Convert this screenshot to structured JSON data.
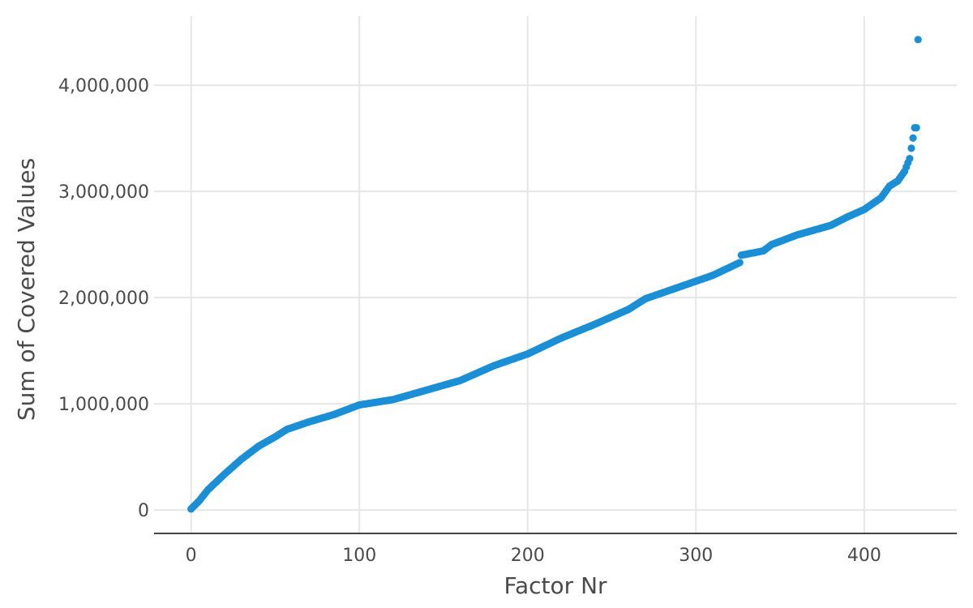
{
  "chart_data": {
    "type": "scatter",
    "xlabel": "Factor Nr",
    "ylabel": "Sum of Covered Values",
    "xlim": [
      -22,
      455
    ],
    "ylim": [
      -220000,
      4650000
    ],
    "x_ticks": [
      0,
      100,
      200,
      300,
      400
    ],
    "x_tick_labels": [
      "0",
      "100",
      "200",
      "300",
      "400"
    ],
    "y_ticks": [
      0,
      1000000,
      2000000,
      3000000,
      4000000
    ],
    "y_tick_labels": [
      "0",
      "1,000,000",
      "2,000,000",
      "3,000,000",
      "4,000,000"
    ],
    "grid": true,
    "point_color": "#1a8fd6",
    "point_count": 433,
    "profile": [
      [
        0,
        10000
      ],
      [
        5,
        90000
      ],
      [
        10,
        190000
      ],
      [
        20,
        340000
      ],
      [
        30,
        480000
      ],
      [
        40,
        600000
      ],
      [
        50,
        690000
      ],
      [
        57,
        760000
      ],
      [
        70,
        830000
      ],
      [
        85,
        900000
      ],
      [
        100,
        990000
      ],
      [
        120,
        1040000
      ],
      [
        140,
        1130000
      ],
      [
        160,
        1220000
      ],
      [
        180,
        1360000
      ],
      [
        200,
        1470000
      ],
      [
        220,
        1620000
      ],
      [
        240,
        1750000
      ],
      [
        260,
        1890000
      ],
      [
        270,
        1990000
      ],
      [
        290,
        2100000
      ],
      [
        310,
        2210000
      ],
      [
        326,
        2330000
      ],
      [
        327,
        2400000
      ],
      [
        340,
        2440000
      ],
      [
        345,
        2500000
      ],
      [
        360,
        2590000
      ],
      [
        380,
        2680000
      ],
      [
        390,
        2760000
      ],
      [
        400,
        2830000
      ],
      [
        410,
        2940000
      ],
      [
        415,
        3050000
      ],
      [
        420,
        3100000
      ],
      [
        424,
        3190000
      ],
      [
        427,
        3310000
      ],
      [
        430,
        3600000
      ],
      [
        432,
        4430000
      ]
    ]
  }
}
